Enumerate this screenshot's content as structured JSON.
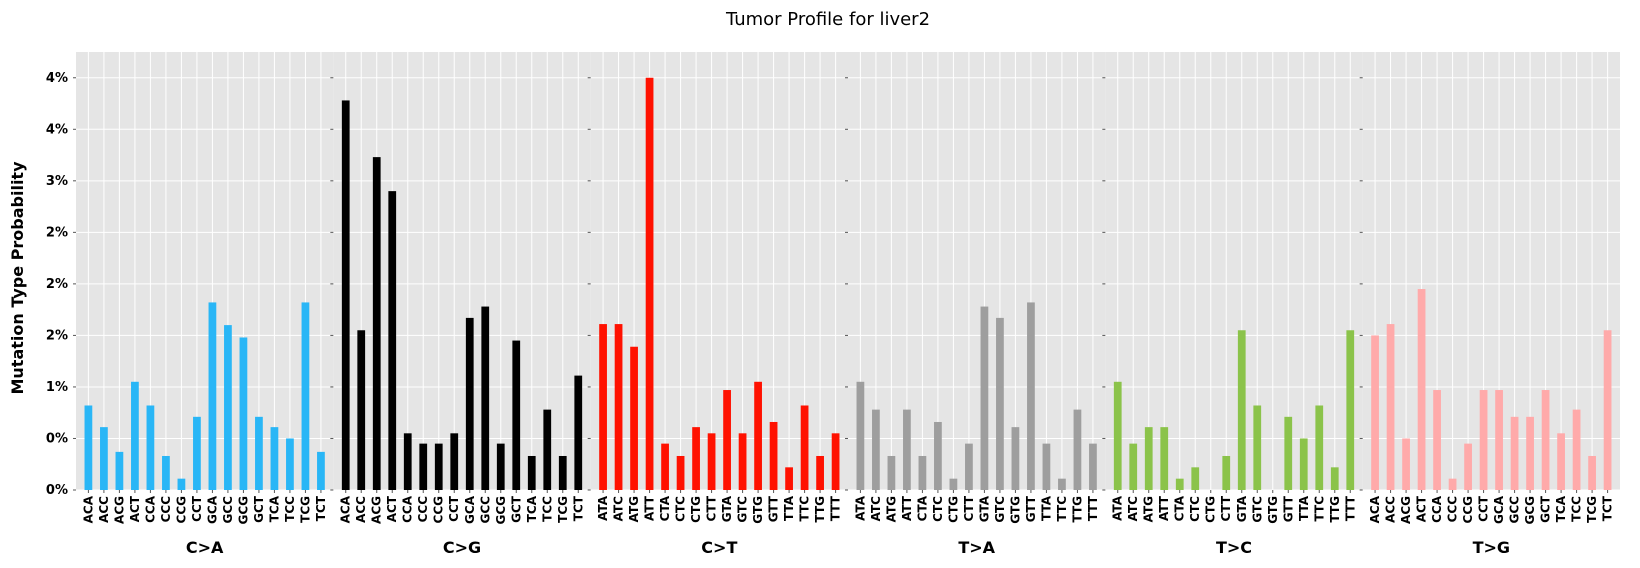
{
  "chart_data": {
    "type": "bar",
    "title": "Tumor Profile for liver2",
    "ylabel": "Mutation Type Probability",
    "yticks": [
      "0%",
      "0%",
      "1%",
      "2%",
      "2%",
      "2%",
      "3%",
      "4%",
      "4%"
    ],
    "ylim": [
      0,
      4.25
    ],
    "grid": true,
    "legend": "none",
    "groups": [
      {
        "name": "C>A",
        "color": "#29b6f6",
        "categories": [
          "ACA",
          "ACC",
          "ACG",
          "ACT",
          "CCA",
          "CCC",
          "CCG",
          "CCT",
          "GCA",
          "GCC",
          "GCG",
          "GCT",
          "TCA",
          "TCC",
          "TCG",
          "TCT"
        ],
        "values": [
          0.82,
          0.61,
          0.37,
          1.05,
          0.82,
          0.33,
          0.11,
          0.71,
          1.82,
          1.6,
          1.48,
          0.71,
          0.61,
          0.5,
          1.82,
          0.37
        ]
      },
      {
        "name": "C>G",
        "color": "#000000",
        "categories": [
          "ACA",
          "ACC",
          "ACG",
          "ACT",
          "CCA",
          "CCC",
          "CCG",
          "CCT",
          "GCA",
          "GCC",
          "GCG",
          "GCT",
          "TCA",
          "TCC",
          "TCG",
          "TCT"
        ],
        "values": [
          3.78,
          1.55,
          3.23,
          2.9,
          0.55,
          0.45,
          0.45,
          0.55,
          1.67,
          1.78,
          0.45,
          1.45,
          0.33,
          0.78,
          0.33,
          1.11
        ]
      },
      {
        "name": "C>T",
        "color": "#ff1100",
        "categories": [
          "ATA",
          "ATC",
          "ATG",
          "ATT",
          "CTA",
          "CTC",
          "CTG",
          "CTT",
          "GTA",
          "GTC",
          "GTG",
          "GTT",
          "TTA",
          "TTC",
          "TTG",
          "TTT"
        ],
        "values": [
          1.61,
          1.61,
          1.39,
          4.0,
          0.45,
          0.33,
          0.61,
          0.55,
          0.97,
          0.55,
          1.05,
          0.66,
          0.22,
          0.82,
          0.33,
          0.55
        ]
      },
      {
        "name": "T>A",
        "color": "#9e9e9e",
        "categories": [
          "ATA",
          "ATC",
          "ATG",
          "ATT",
          "CTA",
          "CTC",
          "CTG",
          "CTT",
          "GTA",
          "GTC",
          "GTG",
          "GTT",
          "TTA",
          "TTC",
          "TTG",
          "TTT"
        ],
        "values": [
          1.05,
          0.78,
          0.33,
          0.78,
          0.33,
          0.66,
          0.11,
          0.45,
          1.78,
          1.67,
          0.61,
          1.82,
          0.45,
          0.11,
          0.78,
          0.45
        ]
      },
      {
        "name": "T>C",
        "color": "#8bc34a",
        "categories": [
          "ATA",
          "ATC",
          "ATG",
          "ATT",
          "CTA",
          "CTC",
          "CTG",
          "CTT",
          "GTA",
          "GTC",
          "GTG",
          "GTT",
          "TTA",
          "TTC",
          "TTG",
          "TTT"
        ],
        "values": [
          1.05,
          0.45,
          0.61,
          0.61,
          0.11,
          0.22,
          0.0,
          0.33,
          1.55,
          0.82,
          0.0,
          0.71,
          0.5,
          0.82,
          0.22,
          1.55
        ]
      },
      {
        "name": "T>G",
        "color": "#ffaaaa",
        "categories": [
          "ACA",
          "ACC",
          "ACG",
          "ACT",
          "CCA",
          "CCC",
          "CCG",
          "CCT",
          "GCA",
          "GCC",
          "GCG",
          "GCT",
          "TCA",
          "TCC",
          "TCG",
          "TCT"
        ],
        "values": [
          1.5,
          1.61,
          0.5,
          1.95,
          0.97,
          0.11,
          0.45,
          0.97,
          0.97,
          0.71,
          0.71,
          0.97,
          0.55,
          0.78,
          0.33,
          1.55
        ]
      }
    ]
  }
}
